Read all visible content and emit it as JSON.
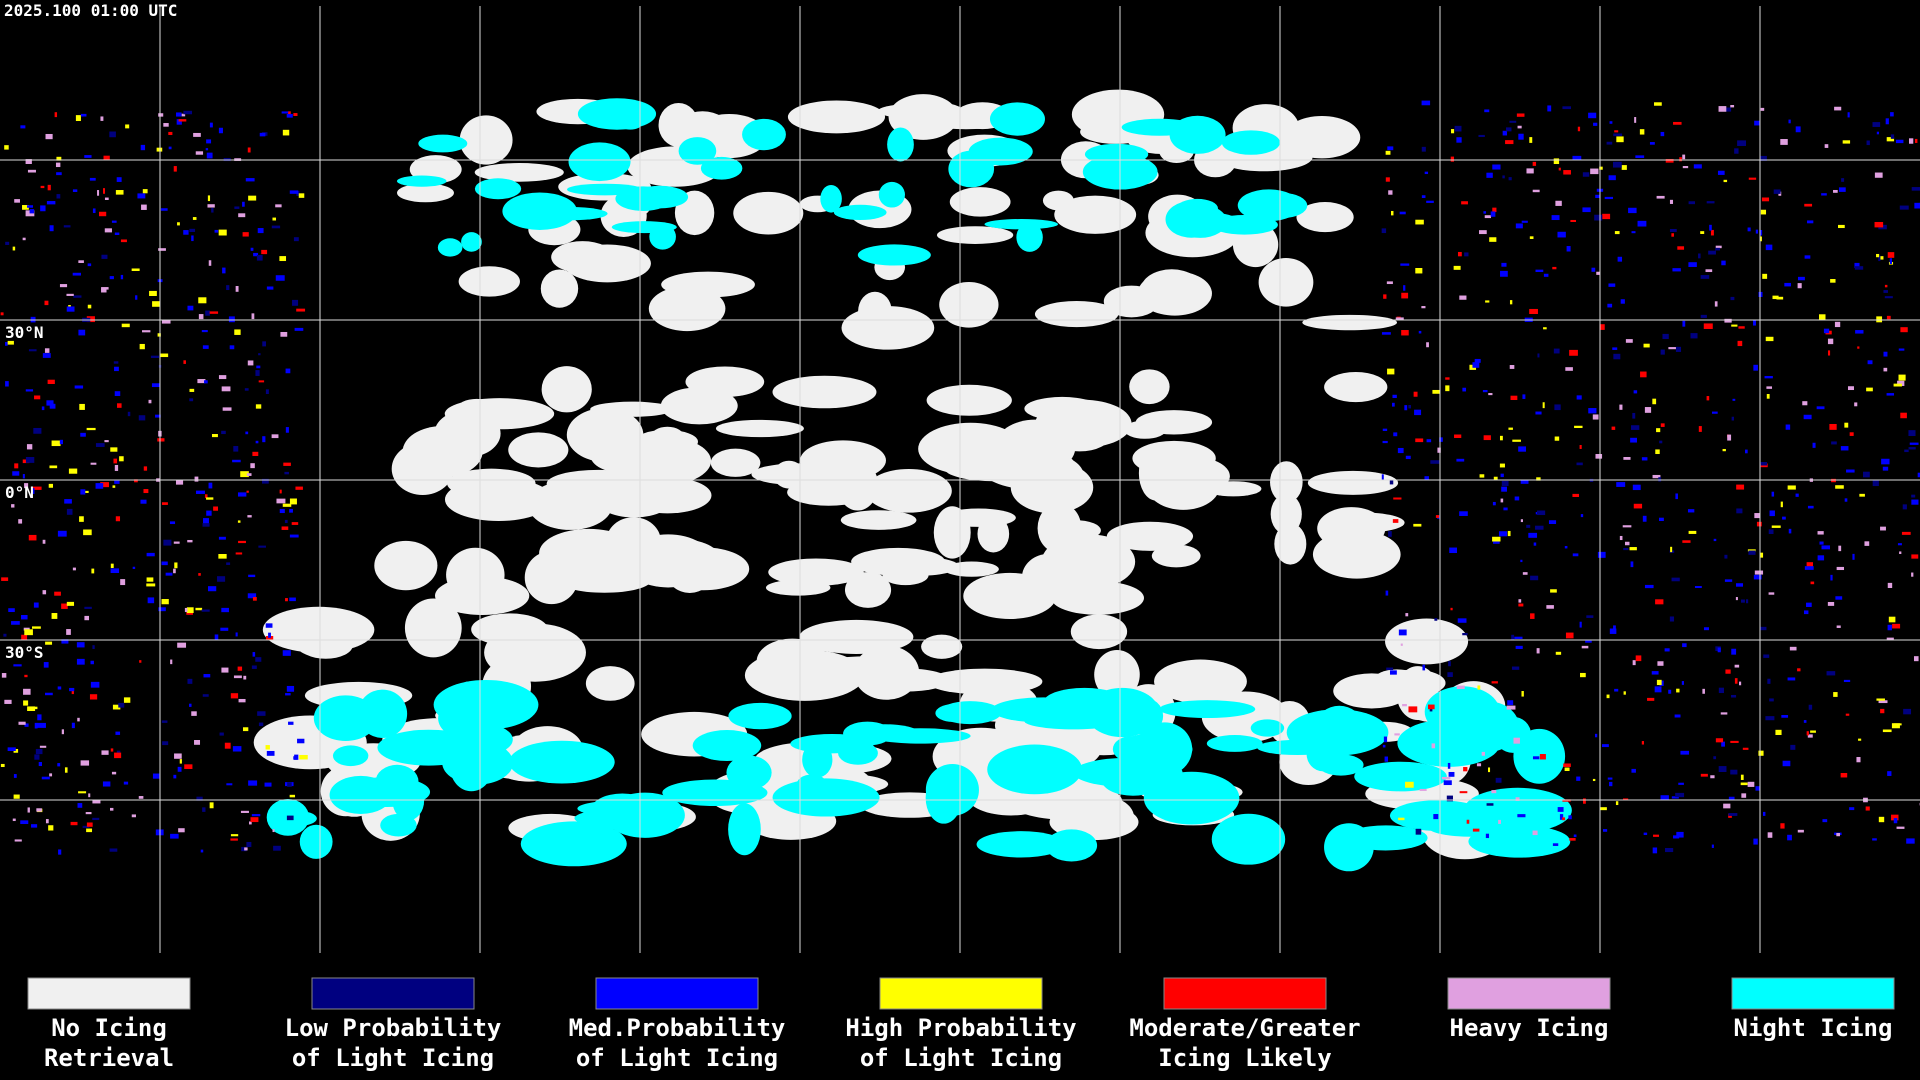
{
  "header": {
    "timestamp": "2025.100 01:00 UTC"
  },
  "map": {
    "latitude_labels": [
      "30°N",
      "0°N",
      "30°S"
    ]
  },
  "legend": [
    {
      "lines": [
        "No Icing",
        "Retrieval"
      ],
      "color": "#f0f0f0"
    },
    {
      "lines": [
        "Low Probability",
        "of Light Icing"
      ],
      "color": "#000080"
    },
    {
      "lines": [
        "Med.Probability",
        "of Light Icing"
      ],
      "color": "#0000ff"
    },
    {
      "lines": [
        "High Probability",
        "of Light Icing"
      ],
      "color": "#ffff00"
    },
    {
      "lines": [
        "Moderate/Greater",
        "Icing Likely"
      ],
      "color": "#ff0000"
    },
    {
      "lines": [
        "Heavy Icing"
      ],
      "color": "#e0a0e0"
    },
    {
      "lines": [
        "Night Icing"
      ],
      "color": "#00ffff"
    }
  ]
}
